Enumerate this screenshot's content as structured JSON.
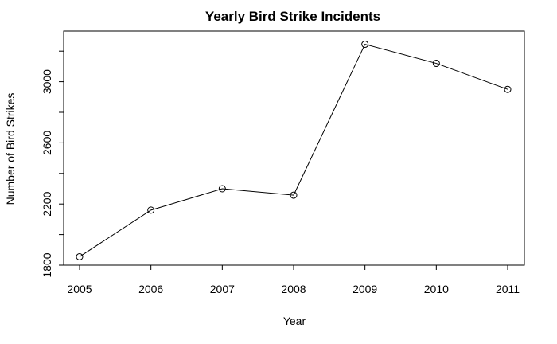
{
  "chart_data": {
    "type": "line",
    "title": "Yearly Bird Strike Incidents",
    "xlabel": "Year",
    "ylabel": "Number of Bird Strikes",
    "x": [
      2005,
      2006,
      2007,
      2008,
      2009,
      2010,
      2011
    ],
    "series": [
      {
        "values": [
          1855,
          2160,
          2300,
          2258,
          3245,
          3120,
          2950
        ]
      }
    ],
    "xlim": [
      2004.8,
      2011.2
    ],
    "ylim": [
      1800,
      3300
    ],
    "x_ticks": [
      "2005",
      "2006",
      "2007",
      "2008",
      "2009",
      "2010",
      "2011"
    ],
    "y_ticks": [
      1800,
      2000,
      2200,
      2400,
      2600,
      2800,
      3000,
      3200
    ],
    "y_tick_labels": [
      "1800",
      "",
      "2200",
      "",
      "2600",
      "",
      "3000",
      ""
    ],
    "grid": false,
    "markers": "open-circle",
    "line_color": "#000000"
  }
}
